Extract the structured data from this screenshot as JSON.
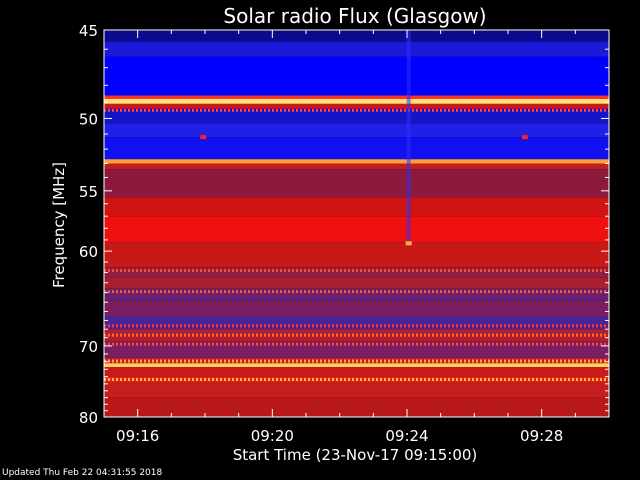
{
  "chart_data": {
    "type": "heatmap",
    "title": "Solar radio Flux (Glasgow)",
    "xlabel": "Start Time (23-Nov-17 09:15:00)",
    "ylabel": "Frequency [MHz]",
    "x_ticks": [
      "09:16",
      "09:20",
      "09:24",
      "09:28"
    ],
    "x_tick_minutes": [
      1,
      5,
      9,
      13
    ],
    "xlim_minutes": [
      0,
      15
    ],
    "y_ticks": [
      45,
      50,
      55,
      60,
      70,
      80
    ],
    "ylim": [
      45,
      80
    ],
    "y_scale": "reciprocal",
    "bands": [
      {
        "from": 45.0,
        "to": 45.6,
        "color": "#0a0a8c"
      },
      {
        "from": 45.6,
        "to": 46.4,
        "color": "#1a1ad8"
      },
      {
        "from": 46.4,
        "to": 48.6,
        "color": "#0000ff"
      },
      {
        "from": 48.6,
        "to": 48.8,
        "color": "#ff3030"
      },
      {
        "from": 48.8,
        "to": 49.1,
        "color": "#ffe070"
      },
      {
        "from": 49.1,
        "to": 49.4,
        "color": "#d01818"
      },
      {
        "from": 49.4,
        "to": 50.3,
        "color": "#1414c8"
      },
      {
        "from": 50.3,
        "to": 51.2,
        "color": "#2020e6"
      },
      {
        "from": 51.2,
        "to": 52.7,
        "color": "#1010f0"
      },
      {
        "from": 52.7,
        "to": 53.0,
        "color": "#ffa040"
      },
      {
        "from": 53.0,
        "to": 53.4,
        "color": "#c02020"
      },
      {
        "from": 53.4,
        "to": 55.5,
        "color": "#8c1a3c"
      },
      {
        "from": 55.5,
        "to": 57.0,
        "color": "#d01414"
      },
      {
        "from": 57.0,
        "to": 59.2,
        "color": "#f01010"
      },
      {
        "from": 59.2,
        "to": 61.5,
        "color": "#c81818"
      },
      {
        "from": 61.5,
        "to": 62.5,
        "color": "#901e40"
      },
      {
        "from": 62.5,
        "to": 63.6,
        "color": "#a82030"
      },
      {
        "from": 63.6,
        "to": 64.8,
        "color": "#6a2070"
      },
      {
        "from": 64.8,
        "to": 66.5,
        "color": "#7a1e60"
      },
      {
        "from": 66.5,
        "to": 68.0,
        "color": "#4a2496"
      },
      {
        "from": 68.0,
        "to": 69.5,
        "color": "#b01c30"
      },
      {
        "from": 69.5,
        "to": 71.5,
        "color": "#7a1e64"
      },
      {
        "from": 71.5,
        "to": 72.2,
        "color": "#c41a28"
      },
      {
        "from": 72.2,
        "to": 72.7,
        "color": "#ffd060"
      },
      {
        "from": 72.7,
        "to": 74.0,
        "color": "#c81c1c"
      },
      {
        "from": 74.0,
        "to": 74.8,
        "color": "#e82018"
      },
      {
        "from": 74.8,
        "to": 77.0,
        "color": "#c41e1e"
      },
      {
        "from": 77.0,
        "to": 80.0,
        "color": "#b81818"
      }
    ],
    "dotted_lines": [
      {
        "freq": 49.5,
        "color": "#ff4040"
      },
      {
        "freq": 61.8,
        "color": "#ff4a2a"
      },
      {
        "freq": 63.9,
        "color": "#ff5a2a"
      },
      {
        "freq": 67.6,
        "color": "#ff3a2a"
      },
      {
        "freq": 68.7,
        "color": "#ff6a30"
      },
      {
        "freq": 69.8,
        "color": "#ff4a2a"
      },
      {
        "freq": 71.9,
        "color": "#ffb050"
      },
      {
        "freq": 74.4,
        "color": "#ffc040"
      }
    ],
    "features": [
      {
        "kind": "vertical-streak",
        "minute": 9.05,
        "from": 45.0,
        "to": 59.3,
        "color": "#3030ff"
      },
      {
        "kind": "spot",
        "minute": 9.05,
        "freq": 59.3,
        "color": "#ffb030"
      },
      {
        "kind": "spot",
        "minute": 2.95,
        "freq": 51.2,
        "color": "#ff2020"
      },
      {
        "kind": "spot",
        "minute": 12.5,
        "freq": 51.2,
        "color": "#ff2020"
      }
    ]
  },
  "footer": {
    "updated": "Updated Thu Feb 22 04:31:55 2018"
  }
}
